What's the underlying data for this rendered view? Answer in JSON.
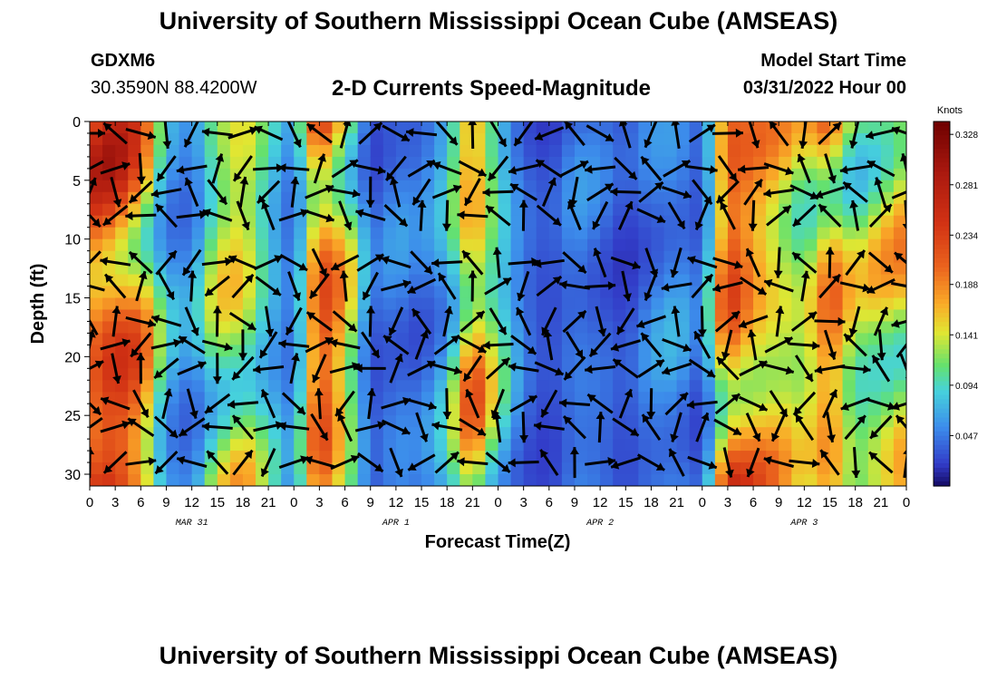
{
  "header": {
    "title": "University of Southern Mississippi Ocean Cube (AMSEAS)",
    "station": "GDXM6",
    "coords": "30.3590N  88.4200W",
    "subtitle": "2-D Currents Speed-Magnitude",
    "start_label": "Model Start Time",
    "start_value": "03/31/2022 Hour 00"
  },
  "footer": {
    "title": "University of Southern Mississippi Ocean Cube (AMSEAS)"
  },
  "chart_data": {
    "type": "heatmap",
    "xlabel": "Forecast Time(Z)",
    "ylabel": "Depth (ft)",
    "x_ticks": [
      "0",
      "3",
      "6",
      "9",
      "12",
      "15",
      "18",
      "21",
      "0",
      "3",
      "6",
      "9",
      "12",
      "15",
      "18",
      "21",
      "0",
      "3",
      "6",
      "9",
      "12",
      "15",
      "18",
      "21",
      "0",
      "3",
      "6",
      "9",
      "12",
      "15",
      "18",
      "21",
      "0"
    ],
    "x_range_hours": [
      0,
      96
    ],
    "date_labels": [
      {
        "label": "MAR 31",
        "hour": 12
      },
      {
        "label": "APR 1",
        "hour": 36
      },
      {
        "label": "APR 2",
        "hour": 60
      },
      {
        "label": "APR 3",
        "hour": 84
      }
    ],
    "y_ticks": [
      0,
      5,
      10,
      15,
      20,
      25,
      30
    ],
    "y_range": [
      0,
      31
    ],
    "y_inverted": true,
    "colorbar": {
      "unit": "Knots",
      "ticks": [
        "0.328",
        "0.281",
        "0.234",
        "0.188",
        "0.141",
        "0.094",
        "0.047"
      ],
      "range": [
        0,
        0.34
      ]
    },
    "speed_by_hour_knots": [
      {
        "hour": 0,
        "speed": 0.25
      },
      {
        "hour": 3,
        "speed": 0.27
      },
      {
        "hour": 6,
        "speed": 0.22
      },
      {
        "hour": 9,
        "speed": 0.08
      },
      {
        "hour": 12,
        "speed": 0.06
      },
      {
        "hour": 15,
        "speed": 0.15
      },
      {
        "hour": 18,
        "speed": 0.17
      },
      {
        "hour": 21,
        "speed": 0.1
      },
      {
        "hour": 24,
        "speed": 0.05
      },
      {
        "hour": 27,
        "speed": 0.26
      },
      {
        "hour": 30,
        "speed": 0.18
      },
      {
        "hour": 33,
        "speed": 0.04
      },
      {
        "hour": 36,
        "speed": 0.06
      },
      {
        "hour": 39,
        "speed": 0.05
      },
      {
        "hour": 42,
        "speed": 0.09
      },
      {
        "hour": 45,
        "speed": 0.22
      },
      {
        "hour": 48,
        "speed": 0.12
      },
      {
        "hour": 51,
        "speed": 0.05
      },
      {
        "hour": 54,
        "speed": 0.03
      },
      {
        "hour": 57,
        "speed": 0.06
      },
      {
        "hour": 60,
        "speed": 0.05
      },
      {
        "hour": 63,
        "speed": 0.03
      },
      {
        "hour": 66,
        "speed": 0.06
      },
      {
        "hour": 69,
        "speed": 0.07
      },
      {
        "hour": 72,
        "speed": 0.04
      },
      {
        "hour": 75,
        "speed": 0.25
      },
      {
        "hour": 78,
        "speed": 0.21
      },
      {
        "hour": 81,
        "speed": 0.18
      },
      {
        "hour": 84,
        "speed": 0.15
      },
      {
        "hour": 87,
        "speed": 0.22
      },
      {
        "hour": 90,
        "speed": 0.14
      },
      {
        "hour": 93,
        "speed": 0.16
      },
      {
        "hour": 96,
        "speed": 0.18
      }
    ],
    "arrow_columns_hours": [
      0,
      3,
      6,
      9,
      12,
      15,
      18,
      21,
      24,
      27,
      30,
      33,
      36,
      39,
      42,
      45,
      48,
      51,
      54,
      57,
      60,
      63,
      66,
      69,
      72,
      75,
      78,
      81,
      84,
      87,
      90,
      93,
      96
    ],
    "arrow_rows_depth_ft": [
      1,
      4,
      6,
      8,
      12,
      14,
      17,
      19,
      21,
      24,
      26,
      29
    ]
  }
}
